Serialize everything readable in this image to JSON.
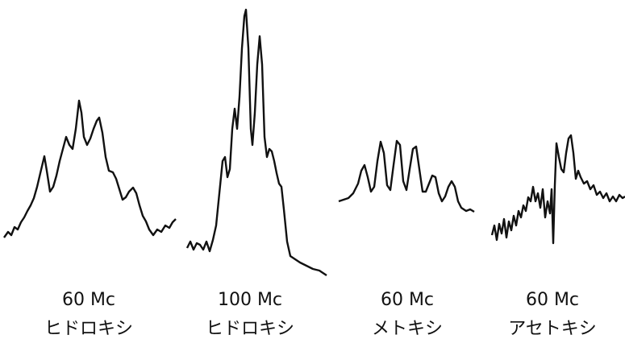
{
  "panels": [
    {
      "frequency": "60 Mc",
      "label": "ヒドロキシ"
    },
    {
      "frequency": "100 Mc",
      "label": "ヒドロキシ"
    },
    {
      "frequency": "60 Mc",
      "label": "メトキシ"
    },
    {
      "frequency": "60 Mc",
      "label": "アセトキシ"
    }
  ]
}
